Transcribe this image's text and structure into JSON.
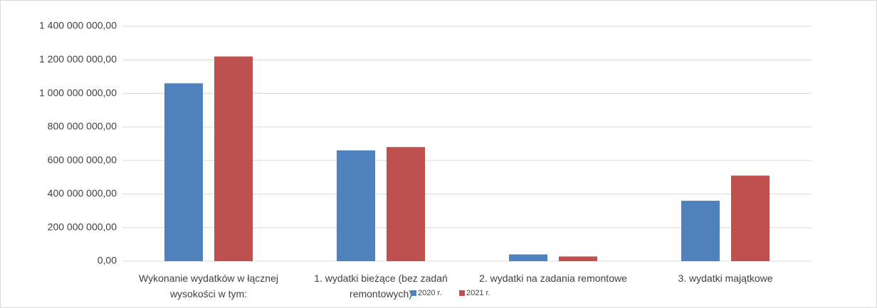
{
  "chart_data": {
    "type": "bar",
    "categories": [
      "Wykonanie wydatków w łącznej wysokości w tym:",
      "1. wydatki bieżące (bez zadań remontowych)",
      "2. wydatki na zadania remontowe",
      "3. wydatki majątkowe"
    ],
    "series": [
      {
        "name": "2020 r.",
        "color": "#4f81bd",
        "values": [
          1060000000,
          660000000,
          40000000,
          360000000
        ]
      },
      {
        "name": "2021 r.",
        "color": "#c0504d",
        "values": [
          1220000000,
          680000000,
          28000000,
          510000000
        ]
      }
    ],
    "ylim": [
      0,
      1400000000
    ],
    "yticks": [
      {
        "value": 0,
        "label": "0,00"
      },
      {
        "value": 200000000,
        "label": "200 000 000,00"
      },
      {
        "value": 400000000,
        "label": "400 000 000,00"
      },
      {
        "value": 600000000,
        "label": "600 000 000,00"
      },
      {
        "value": 800000000,
        "label": "800 000 000,00"
      },
      {
        "value": 1000000000,
        "label": "1 000 000 000,00"
      },
      {
        "value": 1200000000,
        "label": "1 200 000 000,00"
      },
      {
        "value": 1400000000,
        "label": "1 400 000 000,00"
      }
    ],
    "grid": true,
    "legend": "bottom"
  }
}
